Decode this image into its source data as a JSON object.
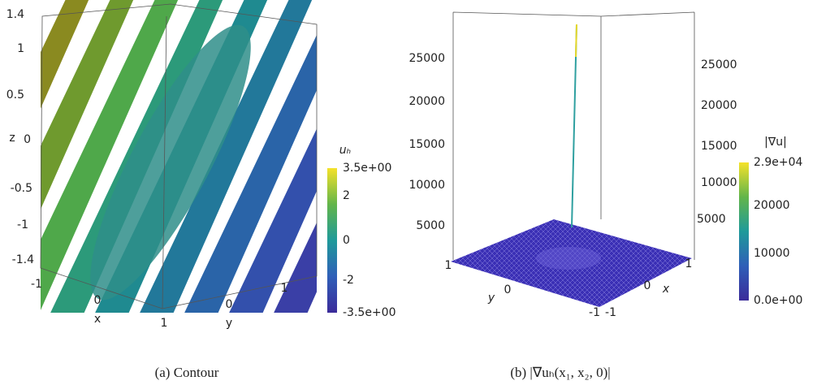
{
  "panel_a": {
    "z_label": "z",
    "z_ticks": [
      "1.4",
      "1",
      "0.5",
      "0",
      "-0.5",
      "-1",
      "-1.4"
    ],
    "x_label": "x",
    "x_ticks": [
      "-1",
      "0",
      "1"
    ],
    "y_label": "y",
    "y_ticks": [
      "0",
      "1"
    ],
    "colorbar_title": "uₕ",
    "colorbar_ticks": [
      "3.5e+00",
      "2",
      "0",
      "-2",
      "-3.5e+00"
    ],
    "caption": "(a) Contour"
  },
  "panel_b": {
    "z_ticks_left": [
      "25000",
      "20000",
      "15000",
      "10000",
      "5000"
    ],
    "z_ticks_right": [
      "25000",
      "20000",
      "15000",
      "10000",
      "5000"
    ],
    "y_label": "y",
    "y_ticks": [
      "1",
      "0",
      "-1"
    ],
    "x_label": "x",
    "x_ticks": [
      "-1",
      "0",
      "1"
    ],
    "colorbar_title": "|∇u|",
    "colorbar_ticks": [
      "2.9e+04",
      "20000",
      "10000",
      "0.0e+00"
    ],
    "caption": "(b) |∇uₕ(x₁, x₂, 0)|"
  }
}
